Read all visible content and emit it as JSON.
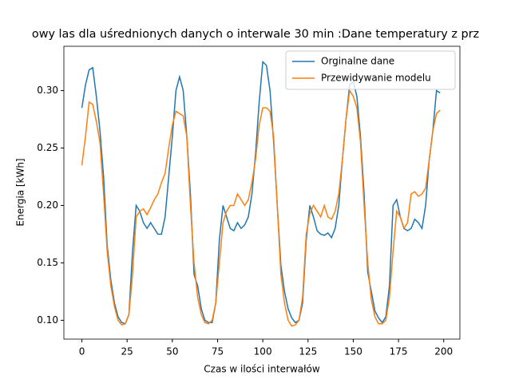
{
  "chart_data": {
    "type": "line",
    "title": "owy las dla uśrednionych danych o interwale 30 min :Dane temperatury z prz",
    "xlabel": "Czas w ilości interwałów",
    "ylabel": "Energia [kWh]",
    "x": [
      0,
      2,
      4,
      6,
      8,
      10,
      12,
      14,
      16,
      18,
      20,
      22,
      24,
      26,
      28,
      30,
      32,
      34,
      36,
      38,
      40,
      42,
      44,
      46,
      48,
      50,
      52,
      54,
      56,
      58,
      60,
      62,
      64,
      66,
      68,
      70,
      72,
      74,
      76,
      78,
      80,
      82,
      84,
      86,
      88,
      90,
      92,
      94,
      96,
      98,
      100,
      102,
      104,
      106,
      108,
      110,
      112,
      114,
      116,
      118,
      120,
      122,
      124,
      126,
      128,
      130,
      132,
      134,
      136,
      138,
      140,
      142,
      144,
      146,
      148,
      150,
      152,
      154,
      156,
      158,
      160,
      162,
      164,
      166,
      168,
      170,
      172,
      174,
      176,
      178,
      180,
      182,
      184,
      186,
      188,
      190,
      192,
      194,
      196,
      198
    ],
    "series": [
      {
        "name": "Orginalne dane",
        "color": "#1f77b4",
        "values": [
          0.285,
          0.305,
          0.318,
          0.32,
          0.295,
          0.265,
          0.225,
          0.165,
          0.135,
          0.115,
          0.103,
          0.098,
          0.097,
          0.105,
          0.16,
          0.2,
          0.195,
          0.185,
          0.18,
          0.185,
          0.18,
          0.175,
          0.175,
          0.19,
          0.225,
          0.26,
          0.3,
          0.312,
          0.3,
          0.26,
          0.21,
          0.14,
          0.13,
          0.11,
          0.1,
          0.098,
          0.098,
          0.115,
          0.17,
          0.2,
          0.19,
          0.18,
          0.178,
          0.185,
          0.18,
          0.183,
          0.19,
          0.21,
          0.245,
          0.29,
          0.325,
          0.322,
          0.3,
          0.255,
          0.2,
          0.148,
          0.125,
          0.11,
          0.102,
          0.098,
          0.1,
          0.115,
          0.17,
          0.2,
          0.19,
          0.178,
          0.175,
          0.174,
          0.176,
          0.172,
          0.18,
          0.2,
          0.24,
          0.275,
          0.305,
          0.308,
          0.295,
          0.26,
          0.21,
          0.142,
          0.125,
          0.108,
          0.102,
          0.098,
          0.103,
          0.13,
          0.2,
          0.205,
          0.19,
          0.18,
          0.178,
          0.18,
          0.188,
          0.185,
          0.18,
          0.2,
          0.24,
          0.265,
          0.3,
          0.298
        ]
      },
      {
        "name": "Przewidywanie modelu",
        "color": "#ff7f0e",
        "values": [
          0.235,
          0.26,
          0.29,
          0.288,
          0.273,
          0.255,
          0.21,
          0.16,
          0.13,
          0.112,
          0.1,
          0.096,
          0.097,
          0.105,
          0.14,
          0.19,
          0.195,
          0.197,
          0.192,
          0.198,
          0.205,
          0.21,
          0.22,
          0.228,
          0.25,
          0.27,
          0.282,
          0.28,
          0.278,
          0.26,
          0.2,
          0.15,
          0.12,
          0.105,
          0.098,
          0.097,
          0.1,
          0.115,
          0.15,
          0.185,
          0.195,
          0.2,
          0.2,
          0.21,
          0.205,
          0.2,
          0.205,
          0.22,
          0.24,
          0.27,
          0.285,
          0.285,
          0.282,
          0.26,
          0.2,
          0.14,
          0.115,
          0.1,
          0.095,
          0.096,
          0.1,
          0.12,
          0.175,
          0.193,
          0.2,
          0.195,
          0.19,
          0.2,
          0.19,
          0.188,
          0.195,
          0.21,
          0.24,
          0.275,
          0.3,
          0.295,
          0.285,
          0.255,
          0.2,
          0.15,
          0.118,
          0.103,
          0.097,
          0.097,
          0.1,
          0.12,
          0.16,
          0.195,
          0.19,
          0.18,
          0.185,
          0.21,
          0.212,
          0.208,
          0.21,
          0.215,
          0.24,
          0.265,
          0.28,
          0.283
        ]
      }
    ],
    "xlim": [
      -9.95,
      208.95
    ],
    "ylim": [
      0.0836,
      0.3386
    ],
    "xticks": [
      0,
      25,
      50,
      75,
      100,
      125,
      150,
      175,
      200
    ],
    "yticks": [
      {
        "value": 0.1,
        "label": "0.10"
      },
      {
        "value": 0.15,
        "label": "0.15"
      },
      {
        "value": 0.2,
        "label": "0.20"
      },
      {
        "value": 0.25,
        "label": "0.25"
      },
      {
        "value": 0.3,
        "label": "0.30"
      }
    ],
    "legend": "upper right"
  }
}
